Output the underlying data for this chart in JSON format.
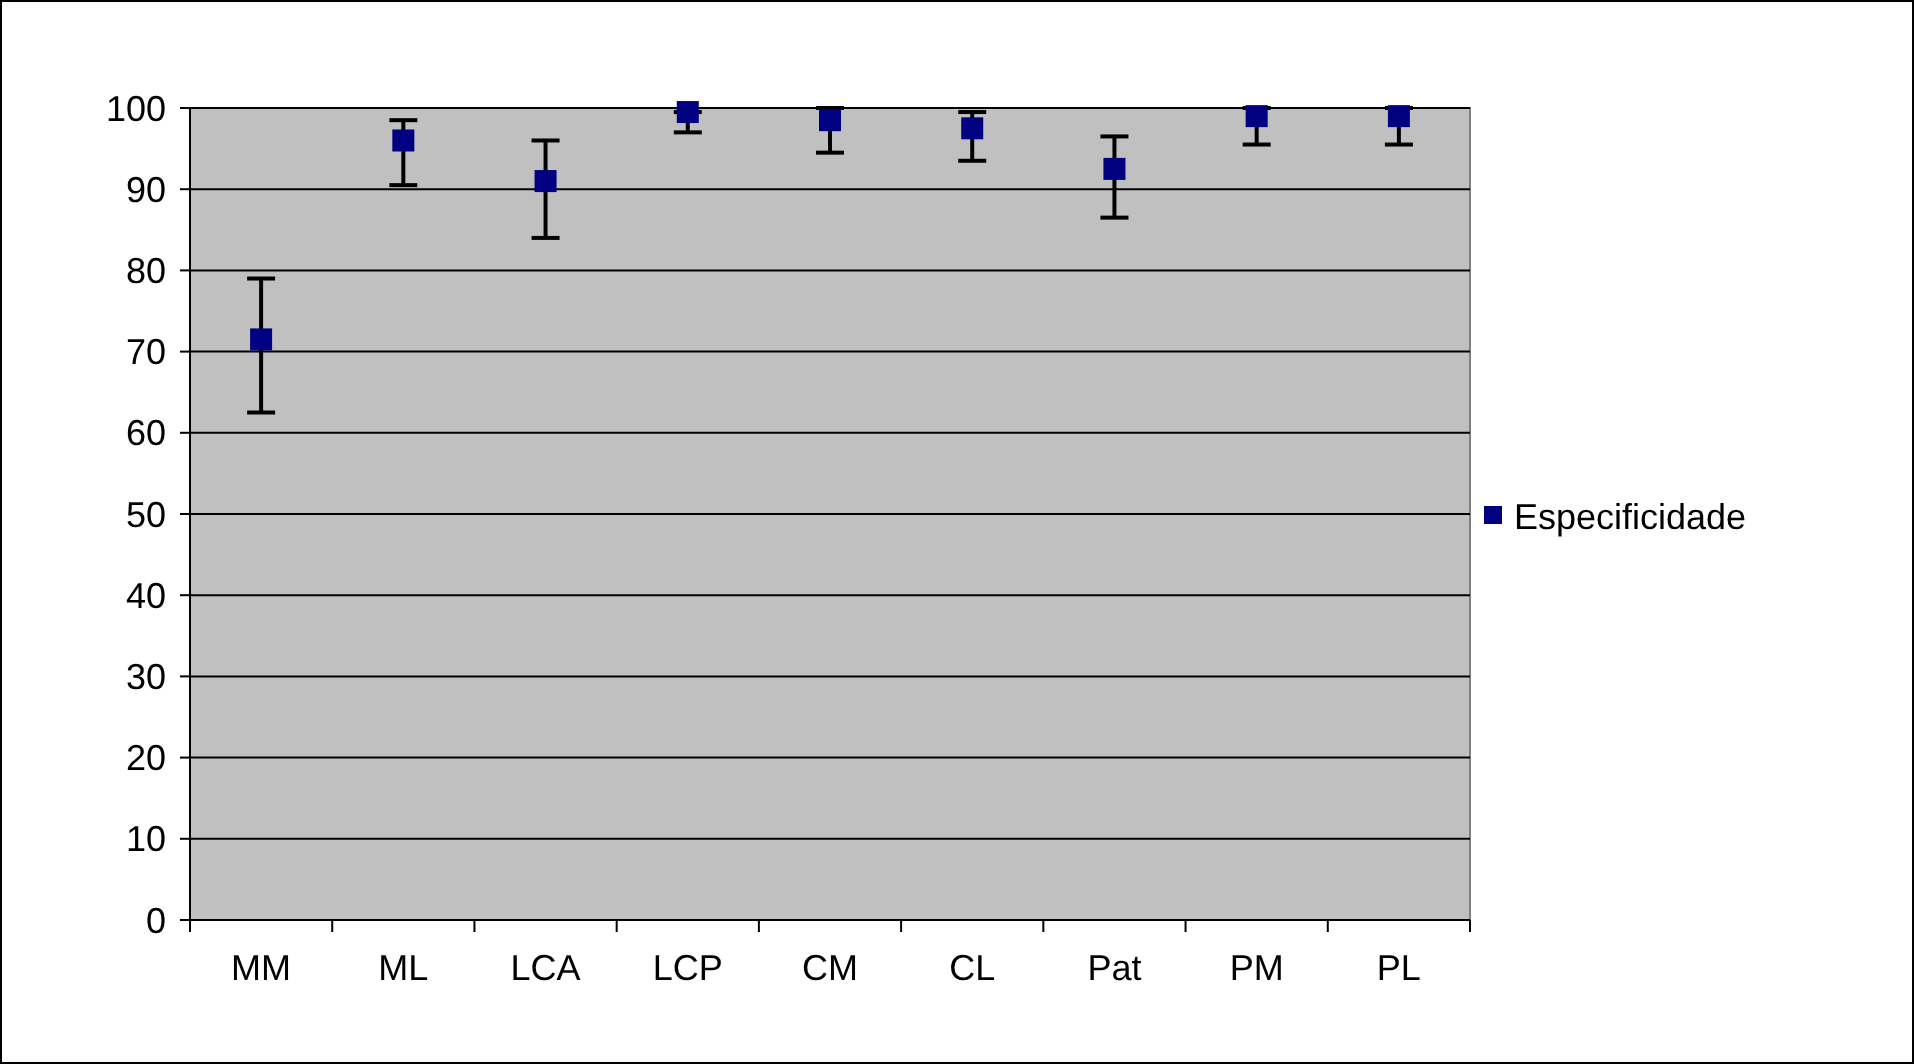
{
  "chart_data": {
    "type": "scatter",
    "categories": [
      "MM",
      "ML",
      "LCA",
      "LCP",
      "CM",
      "CL",
      "Pat",
      "PM",
      "PL"
    ],
    "series": [
      {
        "name": "Especificidade",
        "color": "#000080",
        "values": [
          71.5,
          96,
          91,
          99.5,
          98.5,
          97.5,
          92.5,
          99,
          99
        ],
        "errors": [
          [
            62.5,
            79
          ],
          [
            90.5,
            98.5
          ],
          [
            84,
            96
          ],
          [
            97,
            99.5
          ],
          [
            94.5,
            100
          ],
          [
            93.5,
            99.5
          ],
          [
            86.5,
            96.5
          ],
          [
            95.5,
            100
          ],
          [
            95.5,
            100
          ]
        ]
      }
    ],
    "ylim": [
      0,
      100
    ],
    "yticks": [
      0,
      10,
      20,
      30,
      40,
      50,
      60,
      70,
      80,
      90,
      100
    ],
    "grid": "y",
    "legend": "right",
    "marker": "square"
  }
}
